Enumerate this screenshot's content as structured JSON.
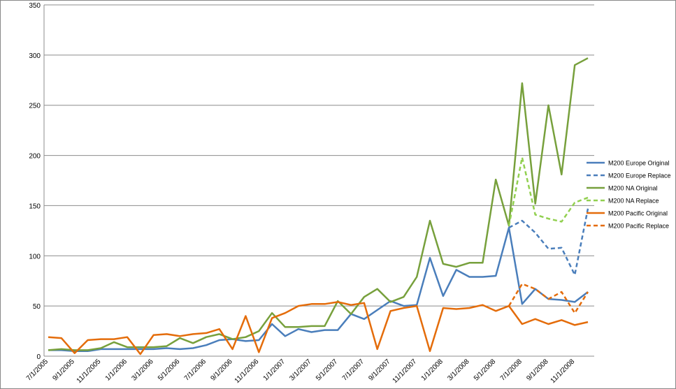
{
  "chart_data": {
    "type": "line",
    "categories": [
      "7/1/2005",
      null,
      "9/1/2005",
      null,
      "11/1/2005",
      null,
      "1/1/2006",
      null,
      "3/1/2006",
      null,
      "5/1/2006",
      null,
      "7/1/2006",
      null,
      "9/1/2006",
      null,
      "11/1/2006",
      null,
      "1/1/2007",
      null,
      "3/1/2007",
      null,
      "5/1/2007",
      null,
      "7/1/2007",
      null,
      "9/1/2007",
      null,
      "11/1/2007",
      null,
      "1/1/2008",
      null,
      "3/1/2008",
      null,
      "5/1/2008",
      null,
      "7/1/2008",
      null,
      "9/1/2008",
      null,
      "11/1/2008",
      null
    ],
    "ylim": [
      0,
      350
    ],
    "yticks": [
      0,
      50,
      100,
      150,
      200,
      250,
      300,
      350
    ],
    "grid": true,
    "legend": "right",
    "series": [
      {
        "name": "M200 Europe Original",
        "color": "#4a7ebb",
        "dashed": false,
        "values": [
          6,
          6,
          5,
          5,
          7,
          7,
          7,
          7,
          7,
          8,
          7,
          8,
          11,
          16,
          17,
          15,
          16,
          32,
          20,
          27,
          24,
          26,
          26,
          42,
          37,
          46,
          55,
          50,
          51,
          98,
          60,
          86,
          79,
          79,
          80,
          128,
          52,
          67,
          57,
          56,
          54,
          64
        ]
      },
      {
        "name": "M200 Europe Replace",
        "color": "#4a7ebb",
        "dashed": true,
        "values": [
          null,
          null,
          null,
          null,
          null,
          null,
          null,
          null,
          null,
          null,
          null,
          null,
          null,
          null,
          null,
          null,
          null,
          null,
          null,
          null,
          null,
          null,
          null,
          null,
          null,
          null,
          null,
          null,
          null,
          null,
          null,
          null,
          null,
          null,
          null,
          128,
          135,
          123,
          107,
          108,
          81,
          147
        ]
      },
      {
        "name": "M200 NA Original",
        "color": "#77a03c",
        "dashed": false,
        "values": [
          6,
          7,
          6,
          6,
          8,
          14,
          9,
          9,
          9,
          10,
          18,
          13,
          19,
          22,
          17,
          19,
          25,
          43,
          29,
          29,
          30,
          30,
          55,
          42,
          59,
          67,
          54,
          59,
          79,
          135,
          92,
          89,
          93,
          93,
          176,
          130,
          272,
          152,
          250,
          181,
          290,
          297
        ]
      },
      {
        "name": "M200 NA Replace",
        "color": "#92d050",
        "dashed": true,
        "values": [
          null,
          null,
          null,
          null,
          null,
          null,
          null,
          null,
          null,
          null,
          null,
          null,
          null,
          null,
          null,
          null,
          null,
          null,
          null,
          null,
          null,
          null,
          null,
          null,
          null,
          null,
          null,
          null,
          null,
          null,
          null,
          null,
          null,
          null,
          null,
          130,
          198,
          141,
          137,
          134,
          153,
          158
        ]
      },
      {
        "name": "M200 Pacific Original",
        "color": "#e46c0a",
        "dashed": false,
        "values": [
          19,
          18,
          3,
          16,
          17,
          17,
          19,
          2,
          21,
          22,
          20,
          22,
          23,
          27,
          7,
          40,
          4,
          38,
          43,
          50,
          52,
          52,
          54,
          51,
          53,
          7,
          45,
          48,
          50,
          5,
          48,
          47,
          48,
          51,
          45,
          50,
          32,
          37,
          32,
          36,
          31,
          34
        ]
      },
      {
        "name": "M200 Pacific Replace",
        "color": "#e46c0a",
        "dashed": true,
        "values": [
          null,
          null,
          null,
          null,
          null,
          null,
          null,
          null,
          null,
          null,
          null,
          null,
          null,
          null,
          null,
          null,
          null,
          null,
          null,
          null,
          null,
          null,
          null,
          null,
          null,
          null,
          null,
          null,
          null,
          null,
          null,
          null,
          null,
          null,
          null,
          50,
          72,
          67,
          57,
          64,
          43,
          64
        ]
      }
    ]
  }
}
